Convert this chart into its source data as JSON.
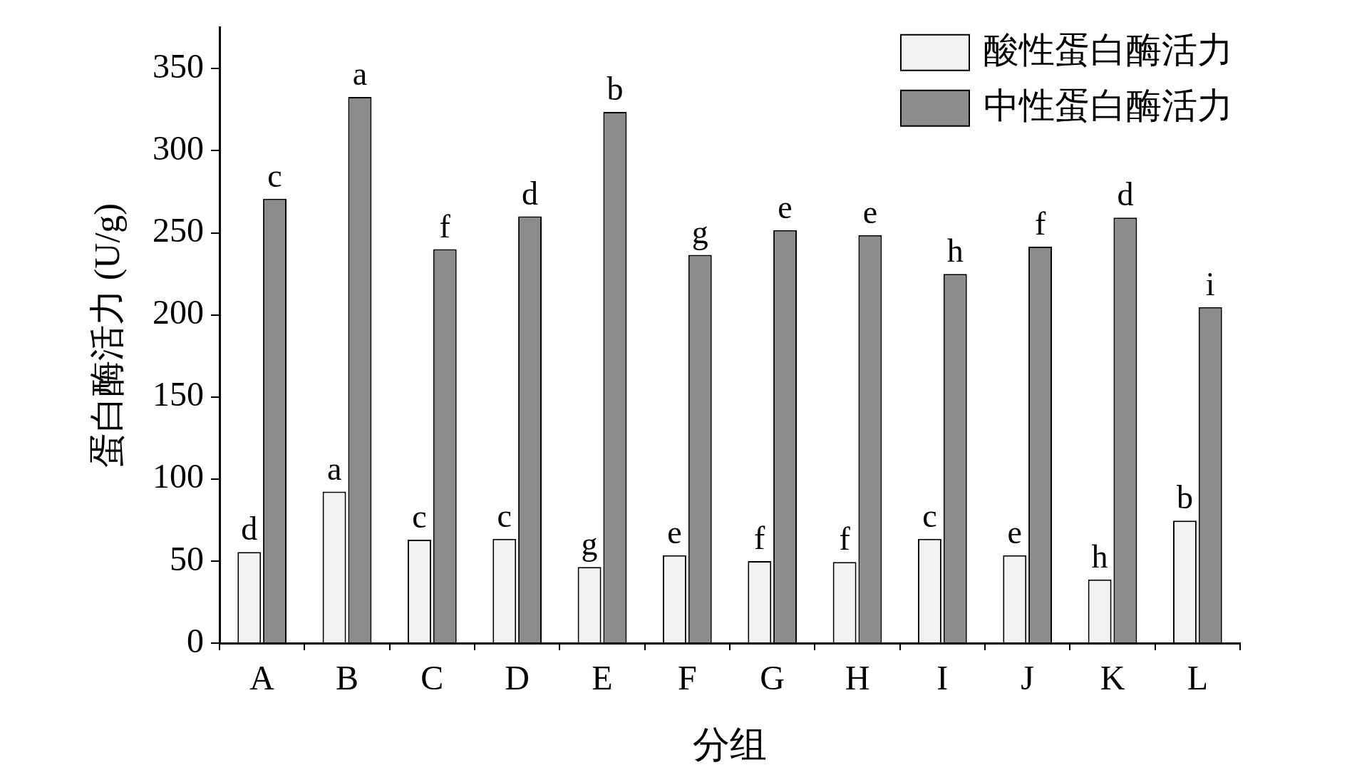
{
  "chart_data": {
    "type": "bar",
    "xlabel": "分组",
    "ylabel": "蛋白酶活力 (U/g)",
    "categories": [
      "A",
      "B",
      "C",
      "D",
      "E",
      "F",
      "G",
      "H",
      "I",
      "J",
      "K",
      "L"
    ],
    "series": [
      {
        "name": "酸性蛋白酶活力",
        "color": "#f2f2f2",
        "values": [
          55.5,
          92.3,
          63,
          63.5,
          46.4,
          53.5,
          50,
          49.4,
          63.5,
          53.5,
          38.8,
          74.6
        ]
      },
      {
        "name": "中性蛋白酶活力",
        "color": "#8c8c8c",
        "values": [
          270.8,
          332.8,
          240,
          260,
          323.7,
          236.5,
          251.6,
          248.6,
          224.9,
          241.5,
          259.2,
          204.7
        ]
      }
    ],
    "ylim": [
      0,
      375
    ],
    "yticks": [
      0,
      50,
      100,
      150,
      200,
      250,
      300,
      350
    ],
    "grid": false,
    "legend": "top right",
    "annotations": [
      {
        "text": "d",
        "x": "A",
        "y": 55.5
      },
      {
        "text": "a",
        "x": "B",
        "y": 92.3
      },
      {
        "text": "c",
        "x": "C",
        "y": 63
      },
      {
        "text": "c",
        "x": "D",
        "y": 63.5
      },
      {
        "text": "g",
        "x": "E",
        "y": 46.4
      },
      {
        "text": "e",
        "x": "F",
        "y": 53.5
      },
      {
        "text": "f",
        "x": "G",
        "y": 50
      },
      {
        "text": "f",
        "x": "H",
        "y": 49.4
      },
      {
        "text": "c",
        "x": "I",
        "y": 63.5
      },
      {
        "text": "e",
        "x": "J",
        "y": 53.5
      },
      {
        "text": "h",
        "x": "K",
        "y": 38.8
      },
      {
        "text": "b",
        "x": "L",
        "y": 74.6
      },
      {
        "text": "c",
        "x": "A",
        "y": 270.8
      },
      {
        "text": "a",
        "x": "B",
        "y": 332.8
      },
      {
        "text": "f",
        "x": "C",
        "y": 240
      },
      {
        "text": "d",
        "x": "D",
        "y": 260
      },
      {
        "text": "b",
        "x": "E",
        "y": 323.7
      },
      {
        "text": "g",
        "x": "F",
        "y": 236.5
      },
      {
        "text": "e",
        "x": "G",
        "y": 251.6
      },
      {
        "text": "e",
        "x": "H",
        "y": 248.6
      },
      {
        "text": "h",
        "x": "I",
        "y": 224.9
      },
      {
        "text": "f",
        "x": "J",
        "y": 241.5
      },
      {
        "text": "d",
        "x": "K",
        "y": 259.2
      },
      {
        "text": "i",
        "x": "L",
        "y": 204.7
      }
    ]
  }
}
